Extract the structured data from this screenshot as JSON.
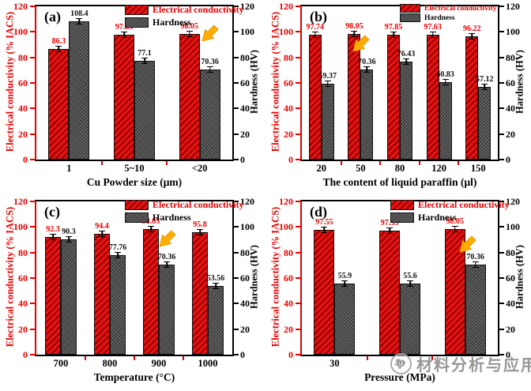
{
  "watermark": {
    "text": "材料分析与应用"
  },
  "colors": {
    "accent_red": "#e60000",
    "bar_red_light": "#ea1111",
    "bar_red_dark": "#8f0202",
    "bar_gray": "#3a3a3a",
    "arrow_gold": "#ffae00",
    "watermark_gray": "#8f8f8f"
  },
  "chart_data": [
    {
      "type": "bar",
      "panel_label": "(a)",
      "xlabel": "Cu Powder size (μm)",
      "ylabel_left": "Electrical conductivity (% IACS)",
      "ylabel_right": "Hardness (HV)",
      "ylim": [
        0,
        120
      ],
      "yticks_left": [
        0,
        20,
        40,
        60,
        80,
        100,
        120
      ],
      "yticks_right": [
        0,
        20,
        40,
        60,
        80,
        100,
        120
      ],
      "categories": [
        "1",
        "5~10",
        "<20"
      ],
      "series": [
        {
          "name": "Electrical conductivity",
          "values": [
            86.3,
            97.85,
            98.05
          ]
        },
        {
          "name": "Hardness",
          "values": [
            108.4,
            77.1,
            70.36
          ]
        }
      ],
      "legend": [
        "Electrical conductivity",
        "Hardness"
      ],
      "legend_position": "top-center",
      "grid": false,
      "arrow_annotation": {
        "x_frac": 0.8,
        "y_frac": 0.15
      }
    },
    {
      "type": "bar",
      "panel_label": "(b)",
      "xlabel": "The content of liquid paraffin (μl)",
      "ylabel_left": "Electrical conductivity (% IACS)",
      "ylabel_right": "Hardness (HV)",
      "ylim": [
        0,
        120
      ],
      "yticks_left": [
        0,
        20,
        40,
        60,
        80,
        100,
        120
      ],
      "yticks_right": [
        0,
        20,
        40,
        60,
        80,
        100,
        120
      ],
      "categories": [
        "20",
        "50",
        "80",
        "120",
        "150"
      ],
      "series": [
        {
          "name": "Electrical conductivity",
          "values": [
            97.74,
            98.05,
            97.85,
            97.63,
            96.22
          ]
        },
        {
          "name": "Hardness",
          "values": [
            59.37,
            70.36,
            76.43,
            60.83,
            57.12
          ]
        }
      ],
      "legend": [
        "Electrical conductivity",
        "Hardness"
      ],
      "legend_position": "top-center",
      "grid": false,
      "arrow_annotation": {
        "x_frac": 0.37,
        "y_frac": 0.2
      }
    },
    {
      "type": "bar",
      "panel_label": "(c)",
      "xlabel": "Temperature (°C)",
      "ylabel_left": "Electrical conductivity (% IACS)",
      "ylabel_right": "Hardness (HV)",
      "ylim": [
        0,
        120
      ],
      "yticks_left": [
        0,
        20,
        40,
        60,
        80,
        100,
        120
      ],
      "yticks_right": [
        0,
        20,
        40,
        60,
        80,
        100,
        120
      ],
      "categories": [
        "700",
        "800",
        "900",
        "1000"
      ],
      "series": [
        {
          "name": "Electrical conductivity",
          "values": [
            92.3,
            94.4,
            98.05,
            95.8
          ]
        },
        {
          "name": "Hardness",
          "values": [
            90.3,
            77.76,
            70.36,
            53.56
          ]
        }
      ],
      "legend": [
        "Electrical conductivity",
        "Hardness"
      ],
      "legend_position": "top-center",
      "grid": false,
      "arrow_annotation": {
        "x_frac": 0.64,
        "y_frac": 0.2
      }
    },
    {
      "type": "bar",
      "panel_label": "(d)",
      "xlabel": "Pressure (MPa)",
      "ylabel_left": "Electrical conductivity (% IACS)",
      "ylabel_right": "Hardness (HV)",
      "ylim": [
        0,
        120
      ],
      "yticks_left": [
        0,
        20,
        40,
        60,
        80,
        100,
        120
      ],
      "yticks_right": [
        0,
        20,
        40,
        60,
        80,
        100,
        120
      ],
      "categories": [
        "30",
        "40",
        ""
      ],
      "series": [
        {
          "name": "Electrical conductivity",
          "values": [
            97.55,
            97.33,
            98.05
          ]
        },
        {
          "name": "Hardness",
          "values": [
            55.9,
            55.6,
            70.36
          ]
        }
      ],
      "legend": [
        "Electrical conductivity",
        "Hardness"
      ],
      "legend_position": "top-center",
      "grid": false,
      "arrow_annotation": {
        "x_frac": 0.77,
        "y_frac": 0.23
      }
    }
  ]
}
